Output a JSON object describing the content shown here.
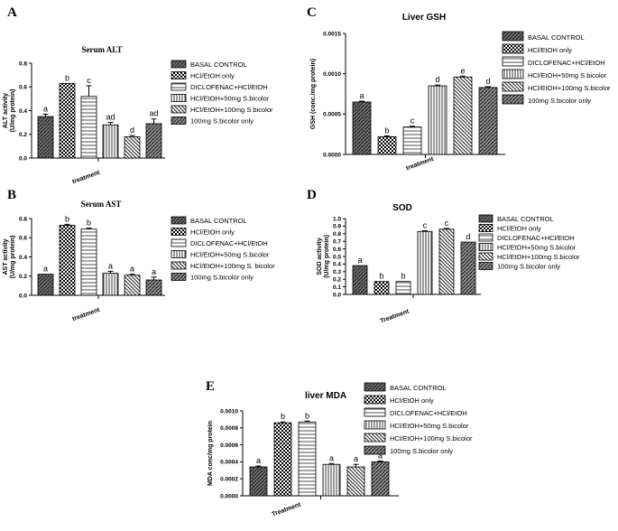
{
  "chart_data": [
    {
      "type": "bar",
      "panel": "A",
      "title": "Serum ALT",
      "xlabel": "treatment",
      "ylabel": "ALT activity (U/mg protein)",
      "ylim": [
        0,
        0.8
      ],
      "yticks": [
        "0.0",
        "0.2",
        "0.4",
        "0.6",
        "0.8"
      ],
      "categories": [
        "BASAL CONTROL",
        "HCl/EtOH only",
        "DICLOFENAC+HCl/EtOH",
        "HCl/EtOH+50mg S.bicolor",
        "HCl/EtOH+100mg S.bicolor",
        "100mg S.bicolor only"
      ],
      "values": [
        0.35,
        0.63,
        0.52,
        0.28,
        0.18,
        0.29
      ],
      "errors": [
        0.02,
        0.0,
        0.09,
        0.02,
        0.01,
        0.04
      ],
      "letters": [
        "a",
        "b",
        "c",
        "ad",
        "d",
        "ad"
      ]
    },
    {
      "type": "bar",
      "panel": "B",
      "title": "Serum AST",
      "xlabel": "treatment",
      "ylabel": "AST activity (U/mg protein)",
      "ylim": [
        0,
        0.8
      ],
      "yticks": [
        "0.0",
        "0.2",
        "0.4",
        "0.6",
        "0.8"
      ],
      "categories": [
        "BASAL CONTROL",
        "HCl/EtOH only",
        "DICLOFENAC+HCl/EtOH",
        "HCl/EtOH+50mg S.bicolor",
        "HCl/EtOH+100mg S. bicolor",
        "100mg S.bicolor only"
      ],
      "values": [
        0.22,
        0.73,
        0.69,
        0.23,
        0.21,
        0.16
      ],
      "errors": [
        0.0,
        0.01,
        0.01,
        0.02,
        0.01,
        0.03
      ],
      "letters": [
        "a",
        "b",
        "b",
        "a",
        "a",
        "a"
      ]
    },
    {
      "type": "bar",
      "panel": "C",
      "title": "Liver GSH",
      "xlabel": "treatment",
      "ylabel": "GSH (conc./mg protein)",
      "ylim": [
        0,
        0.0015
      ],
      "yticks": [
        "0.0000",
        "0.0005",
        "0.0010",
        "0.0015"
      ],
      "categories": [
        "BASAL CONTROL",
        "HCl/EtOH only",
        "DICLOFENAC+HCl/EtOH",
        "HCl/EtOH+50mg S.bicolor",
        "HCl/EtOH+100mg S.bicolor",
        "100mg S.bicolor only"
      ],
      "values": [
        0.00065,
        0.00022,
        0.00034,
        0.00085,
        0.00096,
        0.00083
      ],
      "errors": [
        1e-05,
        1e-05,
        1e-05,
        1e-05,
        1e-05,
        1e-05
      ],
      "letters": [
        "a",
        "b",
        "c",
        "d",
        "e",
        "d"
      ]
    },
    {
      "type": "bar",
      "panel": "D",
      "title": "SOD",
      "xlabel": "Treatment",
      "ylabel": "SOD activity (U/mg protein)",
      "ylim": [
        0,
        1.0
      ],
      "yticks": [
        "0.0",
        "0.1",
        "0.2",
        "0.3",
        "0.4",
        "0.5",
        "0.6",
        "0.7",
        "0.8",
        "0.9",
        "1.0"
      ],
      "categories": [
        "BASAL CONTROL",
        "HCl/EtOH only",
        "DICLOFENAC+HCl/EtOH",
        "HCl/EtOH+50mg S.bicolor",
        "HCl/EtOH+100mg S.bicolor",
        "100mg S.bicolor only"
      ],
      "values": [
        0.38,
        0.17,
        0.17,
        0.83,
        0.86,
        0.69
      ],
      "errors": [
        0.0,
        0.0,
        0.0,
        0.01,
        0.01,
        0.0
      ],
      "letters": [
        "a",
        "b",
        "b",
        "c",
        "c",
        "d"
      ]
    },
    {
      "type": "bar",
      "panel": "E",
      "title": "liver MDA",
      "xlabel": "Treatment",
      "ylabel": "MDA conc/mg protein",
      "ylim": [
        0,
        0.001
      ],
      "yticks": [
        "0.0000",
        "0.0002",
        "0.0004",
        "0.0006",
        "0.0008",
        "0.0010"
      ],
      "categories": [
        "BASAL CONTROL",
        "HCl/EtOH only",
        "DICLOFENAC+HCl/EtOH",
        "HCl/EtOH+50mg S.bicolor",
        "HCl/EtOH+100mg S.bicolor",
        "100mg S.bicolor only"
      ],
      "values": [
        0.00034,
        0.00086,
        0.00087,
        0.00037,
        0.00034,
        0.0004
      ],
      "errors": [
        1e-05,
        1e-05,
        1e-05,
        1e-05,
        3e-05,
        1e-05
      ],
      "letters": [
        "a",
        "b",
        "b",
        "a",
        "a",
        "a"
      ]
    }
  ]
}
